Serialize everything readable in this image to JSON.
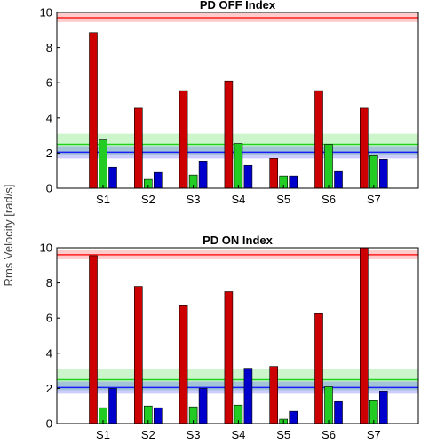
{
  "ylabel": "Rms Velocity [rad/s]",
  "chart_data": [
    {
      "type": "bar",
      "title": "PD OFF Index",
      "categories": [
        "S1",
        "S2",
        "S3",
        "S4",
        "S5",
        "S6",
        "S7"
      ],
      "ylim": [
        0,
        10
      ],
      "yticks": [
        0,
        2,
        4,
        6,
        8,
        10
      ],
      "series": [
        {
          "color": "#cc0000",
          "values": [
            8.85,
            4.55,
            5.55,
            6.1,
            1.7,
            5.55,
            4.55
          ]
        },
        {
          "color": "#22cc22",
          "values": [
            2.75,
            0.5,
            0.75,
            2.55,
            0.7,
            2.5,
            1.85
          ]
        },
        {
          "color": "#0000cc",
          "values": [
            1.2,
            0.9,
            1.55,
            1.3,
            0.7,
            0.95,
            1.65
          ]
        }
      ],
      "reference_bands": [
        {
          "color": "#ff0000",
          "center": 9.7,
          "low": 9.45,
          "high": 9.95
        },
        {
          "color": "#00cc00",
          "center": 2.5,
          "low": 1.9,
          "high": 3.1
        },
        {
          "color": "#0000ff",
          "center": 2.05,
          "low": 1.7,
          "high": 2.4
        }
      ]
    },
    {
      "type": "bar",
      "title": "PD ON Index",
      "categories": [
        "S1",
        "S2",
        "S3",
        "S4",
        "S5",
        "S6",
        "S7"
      ],
      "ylim": [
        0,
        10
      ],
      "yticks": [
        0,
        2,
        4,
        6,
        8,
        10
      ],
      "series": [
        {
          "color": "#cc0000",
          "values": [
            9.55,
            7.8,
            6.7,
            7.5,
            3.25,
            6.25,
            10.0
          ]
        },
        {
          "color": "#22cc22",
          "values": [
            0.9,
            1.0,
            0.95,
            1.05,
            0.25,
            2.1,
            1.3
          ]
        },
        {
          "color": "#0000cc",
          "values": [
            2.0,
            0.9,
            2.0,
            3.15,
            0.7,
            1.25,
            1.85
          ]
        }
      ],
      "reference_bands": [
        {
          "color": "#ff0000",
          "center": 9.6,
          "low": 9.35,
          "high": 9.85
        },
        {
          "color": "#00cc00",
          "center": 2.5,
          "low": 1.9,
          "high": 3.1
        },
        {
          "color": "#0000ff",
          "center": 2.05,
          "low": 1.7,
          "high": 2.4
        }
      ]
    }
  ]
}
